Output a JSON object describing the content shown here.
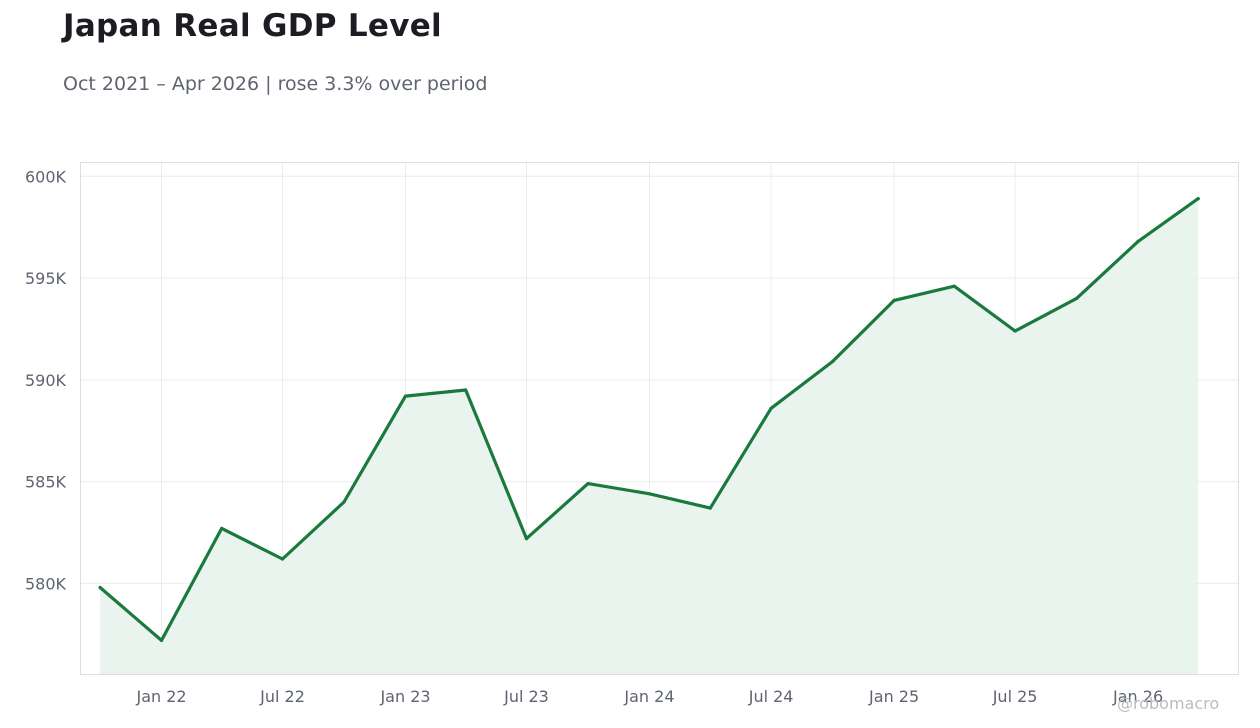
{
  "header": {
    "title": "Japan Real GDP Level",
    "subtitle": "Oct 2021 – Apr 2026 | rose 3.3% over period"
  },
  "watermark": "@robomacro",
  "colors": {
    "line": "#1a7a3e",
    "fill": "#e8f3ec",
    "grid": "#ececec",
    "frame": "#dddddd",
    "text": "#5e6470",
    "title": "#1c1c22"
  },
  "chart_data": {
    "type": "area",
    "title": "Japan Real GDP Level",
    "subtitle": "Oct 2021 – Apr 2026 | rose 3.3% over period",
    "xlabel": "",
    "ylabel": "",
    "x": [
      "2021-10-01",
      "2022-01-01",
      "2022-04-01",
      "2022-07-01",
      "2022-10-01",
      "2023-01-01",
      "2023-04-01",
      "2023-07-01",
      "2023-10-01",
      "2024-01-01",
      "2024-04-01",
      "2024-07-01",
      "2024-10-01",
      "2025-01-01",
      "2025-04-01",
      "2025-07-01",
      "2025-10-01",
      "2026-01-01",
      "2026-04-01"
    ],
    "series": [
      {
        "values": [
          579800,
          577200,
          582700,
          581200,
          584000,
          589200,
          589500,
          582200,
          584900,
          584400,
          583700,
          588600,
          590900,
          593900,
          594600,
          592400,
          594000,
          596800,
          598900
        ]
      }
    ],
    "x_ticks": [
      {
        "date": "2022-01-01",
        "label": "Jan 22"
      },
      {
        "date": "2022-07-01",
        "label": "Jul 22"
      },
      {
        "date": "2023-01-01",
        "label": "Jan 23"
      },
      {
        "date": "2023-07-01",
        "label": "Jul 23"
      },
      {
        "date": "2024-01-01",
        "label": "Jan 24"
      },
      {
        "date": "2024-07-01",
        "label": "Jul 24"
      },
      {
        "date": "2025-01-01",
        "label": "Jan 25"
      },
      {
        "date": "2025-07-01",
        "label": "Jul 25"
      },
      {
        "date": "2026-01-01",
        "label": "Jan 26"
      }
    ],
    "y_ticks": [
      {
        "value": 580000,
        "label": "580K"
      },
      {
        "value": 585000,
        "label": "585K"
      },
      {
        "value": 590000,
        "label": "590K"
      },
      {
        "value": 595000,
        "label": "595K"
      },
      {
        "value": 600000,
        "label": "600K"
      }
    ],
    "xlim": [
      "2021-09-01",
      "2026-06-01"
    ],
    "ylim": [
      575500,
      600700
    ],
    "grid": true,
    "legend": "none"
  }
}
